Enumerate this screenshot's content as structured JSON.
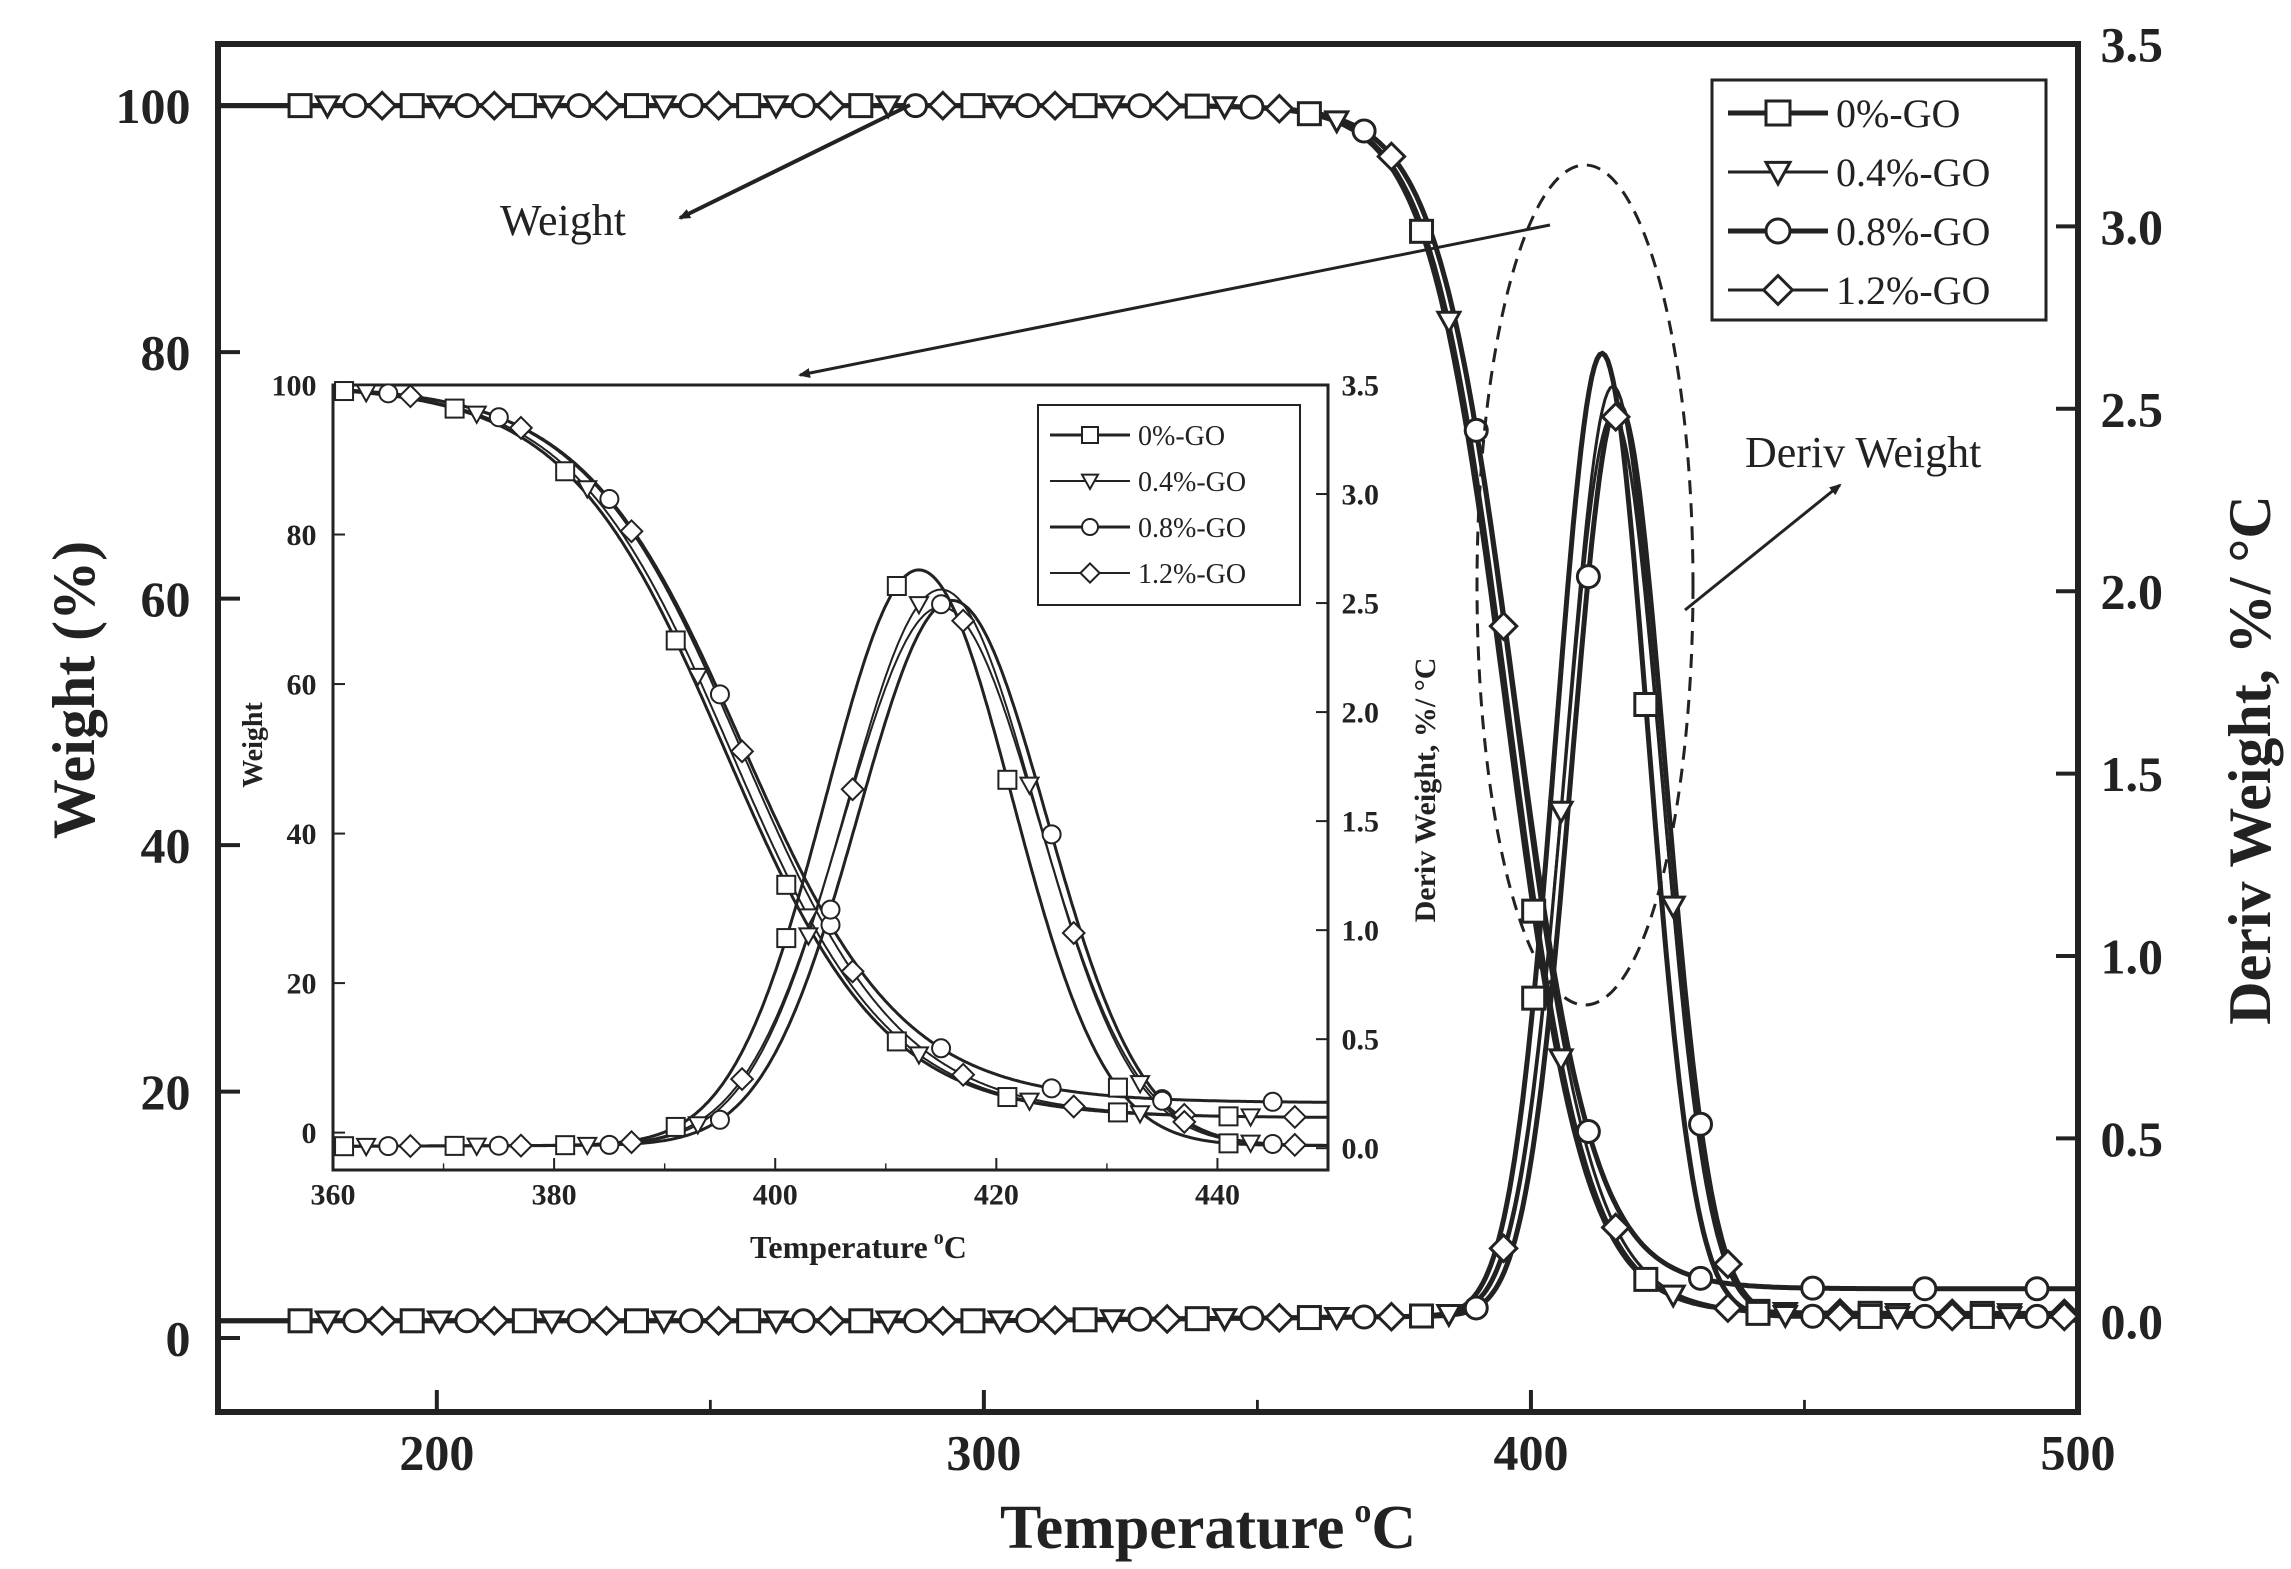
{
  "chart_data": [
    {
      "type": "line",
      "xlabel": "Temperature",
      "xlabel_sup": "o",
      "xlabel_unit": "C",
      "ylabel_left": "Weight (%)",
      "ylabel_right": "Deriv  Weight, %/ °C",
      "xlim": [
        160,
        500
      ],
      "ylim_left": [
        -6,
        105
      ],
      "ylim_right": [
        -0.25,
        3.5
      ],
      "x_ticks": [
        "200",
        "300",
        "400",
        "500"
      ],
      "y_ticks_left": [
        "0",
        "20",
        "40",
        "60",
        "80",
        "100"
      ],
      "y_ticks_right": [
        "0.0",
        "0.5",
        "1.0",
        "1.5",
        "2.0",
        "2.5",
        "3.0",
        "3.5"
      ],
      "legend": [
        "0%-GO",
        "0.4%-GO",
        "0.8%-GO",
        "1.2%-GO"
      ],
      "legend_position": "top-right",
      "annotations": {
        "weight": "Weight",
        "deriv": "Deriv Weight"
      },
      "series": [
        {
          "name": "0%-GO",
          "marker": "square",
          "Tonset": 395.5,
          "Tpeak": 413.0,
          "sigma": 8.4,
          "dpeak": 2.64,
          "residual": 2.0
        },
        {
          "name": "0.4%-GO",
          "marker": "triangle",
          "Tonset": 396.0,
          "Tpeak": 415.0,
          "sigma": 8.6,
          "dpeak": 2.55,
          "residual": 2.0
        },
        {
          "name": "0.8%-GO",
          "marker": "circle",
          "Tonset": 397.0,
          "Tpeak": 416.0,
          "sigma": 8.5,
          "dpeak": 2.5,
          "residual": 4.0
        },
        {
          "name": "1.2%-GO",
          "marker": "diamond",
          "Tonset": 397.0,
          "Tpeak": 415.0,
          "sigma": 8.8,
          "dpeak": 2.47,
          "residual": 2.0
        }
      ]
    },
    {
      "type": "line",
      "xlabel": "Temperature",
      "xlabel_sup": "o",
      "xlabel_unit": "C",
      "ylabel_left": "Weight",
      "ylabel_right": "Deriv  Weight, %/  °C",
      "xlim": [
        360,
        450
      ],
      "ylim_left": [
        -5,
        100
      ],
      "ylim_right": [
        -0.1,
        3.5
      ],
      "x_ticks": [
        "360",
        "380",
        "400",
        "420",
        "440"
      ],
      "y_ticks_left": [
        "0",
        "20",
        "40",
        "60",
        "80",
        "100"
      ],
      "y_ticks_right": [
        "0.0",
        "0.5",
        "1.0",
        "1.5",
        "2.0",
        "2.5",
        "3.0",
        "3.5"
      ],
      "legend": [
        "0%-GO",
        "0.4%-GO",
        "0.8%-GO",
        "1.2%-GO"
      ],
      "legend_position": "top-right"
    }
  ],
  "colors": {
    "ink": "#222222",
    "background": "#ffffff"
  }
}
